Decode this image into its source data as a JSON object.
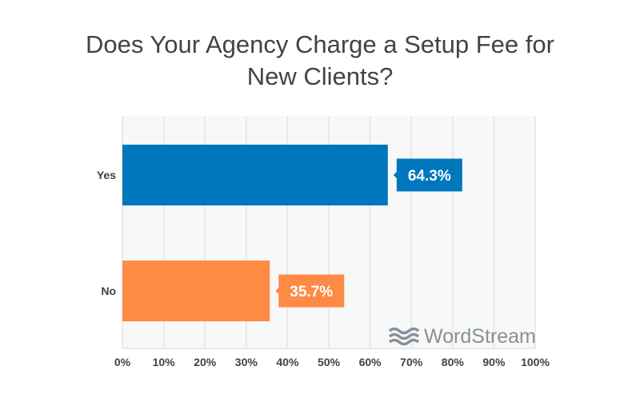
{
  "chart_data": {
    "type": "bar",
    "orientation": "horizontal",
    "title": "Does Your Agency Charge a Setup Fee for New Clients?",
    "title_lines": [
      "Does Your Agency Charge a Setup Fee for",
      "New Clients?"
    ],
    "categories": [
      "Yes",
      "No"
    ],
    "values": [
      64.3,
      35.7
    ],
    "data_labels": [
      "64.3%",
      "35.7%"
    ],
    "colors": [
      "#0077bd",
      "#ff8a45"
    ],
    "xlim": [
      0,
      100
    ],
    "xticks": [
      0,
      10,
      20,
      30,
      40,
      50,
      60,
      70,
      80,
      90,
      100
    ],
    "xtick_labels": [
      "0%",
      "10%",
      "20%",
      "30%",
      "40%",
      "50%",
      "60%",
      "70%",
      "80%",
      "90%",
      "100%"
    ],
    "grid": true,
    "xlabel": "",
    "ylabel": ""
  },
  "watermark": "WordStream"
}
